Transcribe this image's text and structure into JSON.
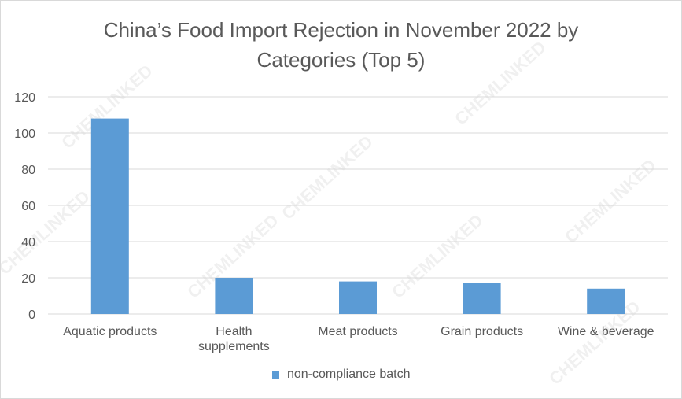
{
  "chart_data": {
    "type": "bar",
    "title_line1": "China’s Food Import Rejection in November 2022 by",
    "title_line2": "Categories (Top 5)",
    "categories": [
      [
        "Aquatic products"
      ],
      [
        "Health",
        "supplements"
      ],
      [
        "Meat products"
      ],
      [
        "Grain products"
      ],
      [
        "Wine & beverage"
      ]
    ],
    "series": [
      {
        "name": "non-compliance batch",
        "values": [
          108,
          20,
          18,
          17,
          14
        ],
        "color": "#5b9bd5"
      }
    ],
    "ylim": [
      0,
      120
    ],
    "yticks": [
      0,
      20,
      40,
      60,
      80,
      100,
      120
    ],
    "grid": true,
    "legend_position": "bottom",
    "watermark": "CHEMLINKED"
  }
}
